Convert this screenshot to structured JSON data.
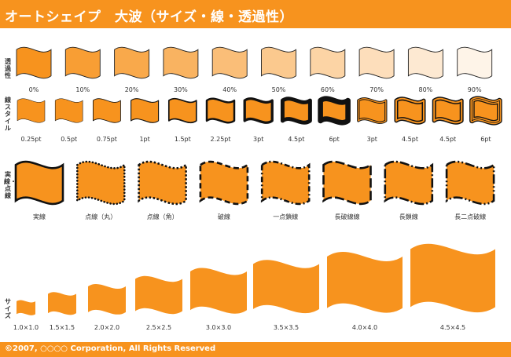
{
  "header": {
    "title": "オートシェイプ　大波（サイズ・線・透過性）",
    "color": "#f7931e"
  },
  "footer": {
    "copyright": "©2007, ○○○○ Corporation, All Rights Reserved"
  },
  "shape_color": "#f7931e",
  "rows": {
    "transparency": {
      "label": "透過性",
      "items": [
        {
          "label": "0%",
          "transparency": 0
        },
        {
          "label": "10%",
          "transparency": 0.1
        },
        {
          "label": "20%",
          "transparency": 0.2
        },
        {
          "label": "30%",
          "transparency": 0.3
        },
        {
          "label": "40%",
          "transparency": 0.4
        },
        {
          "label": "50%",
          "transparency": 0.5
        },
        {
          "label": "60%",
          "transparency": 0.6
        },
        {
          "label": "70%",
          "transparency": 0.7
        },
        {
          "label": "80%",
          "transparency": 0.8
        },
        {
          "label": "90%",
          "transparency": 0.9
        }
      ]
    },
    "line_style": {
      "label": "線スタイル",
      "items": [
        {
          "label": "0.25pt",
          "line_pt": 0.25,
          "style": "single"
        },
        {
          "label": "0.5pt",
          "line_pt": 0.5,
          "style": "single"
        },
        {
          "label": "0.75pt",
          "line_pt": 0.75,
          "style": "single"
        },
        {
          "label": "1pt",
          "line_pt": 1,
          "style": "single"
        },
        {
          "label": "1.5pt",
          "line_pt": 1.5,
          "style": "single"
        },
        {
          "label": "2.25pt",
          "line_pt": 2.25,
          "style": "single"
        },
        {
          "label": "3pt",
          "line_pt": 3,
          "style": "single"
        },
        {
          "label": "4.5pt",
          "line_pt": 4.5,
          "style": "single"
        },
        {
          "label": "6pt",
          "line_pt": 6,
          "style": "single"
        },
        {
          "label": "3pt",
          "line_pt": 3,
          "style": "double"
        },
        {
          "label": "4.5pt",
          "line_pt": 4.5,
          "style": "double"
        },
        {
          "label": "4.5pt",
          "line_pt": 4.5,
          "style": "thick-thin"
        },
        {
          "label": "6pt",
          "line_pt": 6,
          "style": "triple"
        }
      ]
    },
    "dash": {
      "label": "実線・点線",
      "items": [
        {
          "label": "実線",
          "dash": "solid"
        },
        {
          "label": "点線（丸）",
          "dash": "round-dot"
        },
        {
          "label": "点線（角）",
          "dash": "square-dot"
        },
        {
          "label": "破線",
          "dash": "dash"
        },
        {
          "label": "一点鎖線",
          "dash": "dash-dot"
        },
        {
          "label": "長破線線",
          "dash": "long-dash"
        },
        {
          "label": "長鎖線",
          "dash": "long-dash-dot"
        },
        {
          "label": "長二点破線",
          "dash": "long-dash-dot-dot"
        }
      ]
    },
    "size": {
      "label": "サイズ",
      "items": [
        {
          "label": "1.0×1.0",
          "scale": 1.0
        },
        {
          "label": "1.5×1.5",
          "scale": 1.5
        },
        {
          "label": "2.0×2.0",
          "scale": 2.0
        },
        {
          "label": "2.5×2.5",
          "scale": 2.5
        },
        {
          "label": "3.0×3.0",
          "scale": 3.0
        },
        {
          "label": "3.5×3.5",
          "scale": 3.5
        },
        {
          "label": "4.0×4.0",
          "scale": 4.0
        },
        {
          "label": "4.5×4.5",
          "scale": 4.5
        }
      ]
    }
  }
}
